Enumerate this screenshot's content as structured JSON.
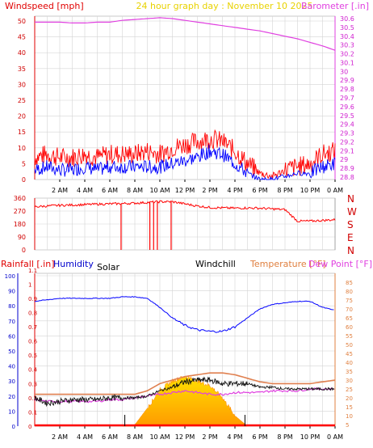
{
  "chart_data": [
    {
      "type": "line",
      "title": "24 hour graph day : November 10 2025",
      "title_color": "#e8d200",
      "ylabel_left": "Windspeed [mph]",
      "ylabel_left_color": "#e00000",
      "ylabel_right": "Barometer [.in]",
      "ylabel_right_color": "#e040e0",
      "ylim_left": [
        0,
        50
      ],
      "yticks_left": [
        "0",
        "5",
        "10",
        "15",
        "20",
        "25",
        "30",
        "35",
        "40",
        "45",
        "50"
      ],
      "ylim_right": [
        28.8,
        30.7
      ],
      "yticks_right": [
        "28.8",
        "28.9",
        "29",
        "29.1",
        "29.2",
        "29.3",
        "29.4",
        "29.5",
        "29.6",
        "29.7",
        "29.8",
        "29.9",
        "30",
        "30.1",
        "30.2",
        "30.3",
        "30.4",
        "30.5",
        "30.6"
      ],
      "xlim": [
        0,
        24
      ],
      "xticks": [
        "2 AM",
        "4 AM",
        "6 AM",
        "8 AM",
        "10 AM",
        "12 PM",
        "2 PM",
        "4 PM",
        "6 PM",
        "8 PM",
        "10 PM",
        "0 AM"
      ],
      "grid": true,
      "series": [
        {
          "name": "Barometer",
          "axis": "right",
          "color": "#e040e0",
          "x": [
            0,
            1,
            2,
            3,
            4,
            5,
            6,
            7,
            8,
            9,
            10,
            11,
            12,
            13,
            14,
            15,
            16,
            17,
            18,
            19,
            20,
            21,
            22,
            23,
            24
          ],
          "values": [
            30.56,
            30.56,
            30.56,
            30.55,
            30.55,
            30.56,
            30.56,
            30.58,
            30.59,
            30.6,
            30.61,
            30.6,
            30.58,
            30.56,
            30.54,
            30.52,
            30.5,
            30.48,
            30.46,
            30.43,
            30.4,
            30.37,
            30.33,
            30.29,
            30.24
          ]
        },
        {
          "name": "Gust",
          "axis": "left",
          "color": "#ff0000",
          "x": [
            0,
            1,
            2,
            3,
            4,
            5,
            6,
            7,
            8,
            9,
            10,
            11,
            12,
            13,
            14,
            15,
            16,
            17,
            18,
            19,
            20,
            21,
            22,
            23,
            24
          ],
          "values": [
            7,
            8,
            7,
            7,
            8,
            7,
            8,
            8,
            8,
            9,
            8,
            10,
            11,
            12,
            13,
            12,
            9,
            5,
            2,
            1,
            3,
            4,
            5,
            8,
            9
          ]
        },
        {
          "name": "Wind speed",
          "axis": "left",
          "color": "#0000ff",
          "x": [
            0,
            1,
            2,
            3,
            4,
            5,
            6,
            7,
            8,
            9,
            10,
            11,
            12,
            13,
            14,
            15,
            16,
            17,
            18,
            19,
            20,
            21,
            22,
            23,
            24
          ],
          "values": [
            3,
            4,
            3,
            3,
            4,
            3,
            4,
            4,
            4,
            4,
            4,
            5,
            6,
            7,
            9,
            8,
            5,
            2,
            0,
            0,
            1,
            2,
            2,
            4,
            5
          ]
        }
      ]
    },
    {
      "type": "line",
      "ylim": [
        0,
        360
      ],
      "yticks": [
        "0",
        "90",
        "180",
        "270",
        "360"
      ],
      "compass_labels": [
        "N",
        "W",
        "S",
        "E",
        "N"
      ],
      "xlim": [
        0,
        24
      ],
      "grid": true,
      "series": [
        {
          "name": "Wind direction",
          "color": "#ff0000",
          "x": [
            0,
            1,
            2,
            3,
            4,
            5,
            6,
            7,
            8,
            9,
            10,
            11,
            12,
            13,
            14,
            15,
            16,
            17,
            18,
            19,
            20,
            21,
            22,
            23,
            24
          ],
          "values": [
            300,
            305,
            310,
            312,
            315,
            318,
            320,
            322,
            325,
            330,
            335,
            335,
            320,
            305,
            295,
            292,
            290,
            292,
            290,
            285,
            280,
            200,
            200,
            205,
            210
          ]
        }
      ],
      "drops_to_zero_at": [
        6.9,
        9.2,
        9.5,
        9.8,
        10.9
      ]
    },
    {
      "type": "line",
      "ylabel_left": "Rainfall [.in]",
      "ylabel_left_color": "#e00000",
      "ylabel_humidity": "Humidity",
      "ylabel_humidity_color": "#0000cc",
      "ylabel_solar": "Solar",
      "ylabel_windchill": "Windchill",
      "ylabel_right": "Temperature [°F]",
      "ylabel_right_color": "#e08040",
      "ylabel_dewpoint": "Dew Point [°F]",
      "ylabel_dewpoint_color": "#e040e0",
      "ylim_humidity": [
        0,
        100
      ],
      "yticks_humidity": [
        "0",
        "10",
        "20",
        "30",
        "40",
        "50",
        "60",
        "70",
        "80",
        "90",
        "100"
      ],
      "ylim_rain": [
        0,
        1.15
      ],
      "yticks_rain": [
        "0",
        "0.1",
        "0.2",
        "0.3",
        "0.4",
        "0.5",
        "0.6",
        "0.7",
        "0.8",
        "0.9",
        "1",
        "1.1"
      ],
      "ylim_temp": [
        3,
        88
      ],
      "yticks_temp": [
        "5",
        "10",
        "15",
        "20",
        "25",
        "30",
        "35",
        "40",
        "45",
        "50",
        "55",
        "60",
        "65",
        "70",
        "75",
        "80",
        "85"
      ],
      "xlim": [
        0,
        24
      ],
      "xticks": [
        "2 AM",
        "4 AM",
        "6 AM",
        "8 AM",
        "10 AM",
        "12 PM",
        "2 PM",
        "4 PM",
        "6 PM",
        "8 PM",
        "10 PM",
        "0 AM"
      ],
      "grid": true,
      "series": [
        {
          "name": "Humidity",
          "axis": "humidity",
          "color": "#0000ff",
          "x": [
            0,
            1,
            2,
            3,
            4,
            5,
            6,
            7,
            8,
            9,
            10,
            11,
            12,
            13,
            14,
            15,
            16,
            17,
            18,
            19,
            20,
            21,
            22,
            23,
            24
          ],
          "values": [
            83,
            84,
            85,
            85,
            85,
            85,
            85,
            86,
            86,
            85,
            79,
            72,
            67,
            64,
            63,
            63,
            66,
            72,
            78,
            81,
            82,
            83,
            83,
            79,
            77
          ]
        },
        {
          "name": "Temperature",
          "axis": "temp",
          "color": "#e08050",
          "x": [
            0,
            1,
            2,
            3,
            4,
            5,
            6,
            7,
            8,
            9,
            10,
            11,
            12,
            13,
            14,
            15,
            16,
            17,
            18,
            19,
            20,
            21,
            22,
            23,
            24
          ],
          "values": [
            22,
            22,
            22,
            22,
            22,
            22,
            22,
            22,
            22,
            24,
            28,
            30,
            32,
            33,
            34,
            34,
            33,
            31,
            29,
            28,
            28,
            28,
            28,
            29,
            30
          ]
        },
        {
          "name": "Windchill",
          "axis": "temp",
          "color": "#111111",
          "x": [
            0,
            1,
            2,
            3,
            4,
            5,
            6,
            7,
            8,
            9,
            10,
            11,
            12,
            13,
            14,
            15,
            16,
            17,
            18,
            19,
            20,
            21,
            22,
            23,
            24
          ],
          "values": [
            20,
            17,
            18,
            19,
            19,
            19,
            20,
            20,
            20,
            21,
            24,
            26,
            29,
            30,
            30,
            28,
            28,
            28,
            26,
            26,
            25,
            25,
            25,
            25,
            25
          ]
        },
        {
          "name": "Dew Point",
          "axis": "temp",
          "color": "#e040e0",
          "x": [
            0,
            1,
            2,
            3,
            4,
            5,
            6,
            7,
            8,
            9,
            10,
            11,
            12,
            13,
            14,
            15,
            16,
            17,
            18,
            19,
            20,
            21,
            22,
            23,
            24
          ],
          "values": [
            19,
            18,
            18,
            18,
            18,
            18,
            19,
            19,
            20,
            21,
            22,
            23,
            24,
            23,
            22,
            22,
            23,
            23,
            23,
            24,
            24,
            24,
            25,
            25,
            25
          ]
        },
        {
          "name": "Solar",
          "axis": "humidity",
          "color": "#ffcc00",
          "x": [
            7,
            8,
            9,
            10,
            11,
            12,
            13,
            14,
            15,
            16,
            17
          ],
          "values": [
            0,
            1,
            12,
            24,
            30,
            33,
            30,
            27,
            19,
            7,
            0
          ]
        },
        {
          "name": "Rainfall",
          "axis": "rain",
          "color": "#ff0000",
          "x": [
            0,
            24
          ],
          "values": [
            0,
            0
          ]
        }
      ],
      "markers_at": [
        7.2,
        16.8
      ]
    }
  ]
}
